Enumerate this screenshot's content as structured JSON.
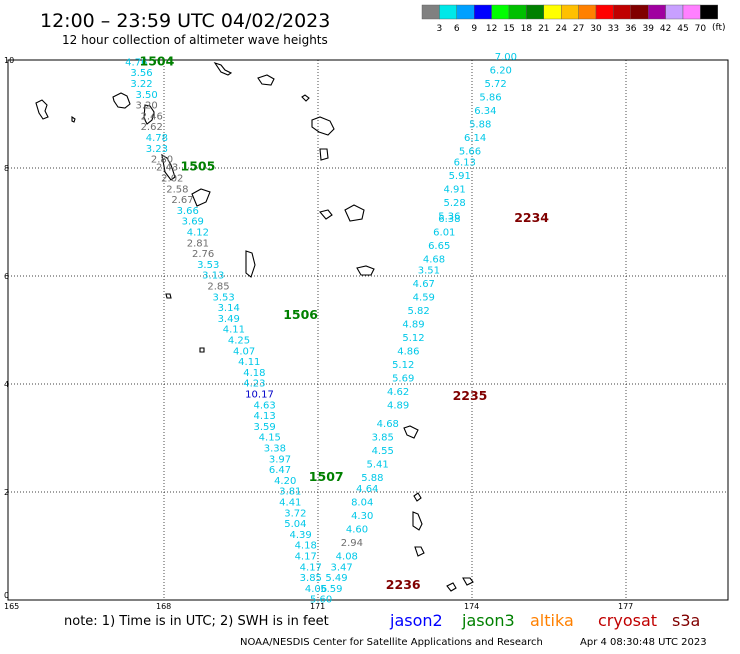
{
  "header": {
    "title": "12:00 – 23:59 UTC 04/02/2023",
    "subtitle": "12 hour collection of altimeter wave heights"
  },
  "legend": {
    "unit": "(ft)",
    "colors": [
      "#808080",
      "#00e8e8",
      "#00a0ff",
      "#0000ff",
      "#00ff00",
      "#00c000",
      "#008000",
      "#ffff00",
      "#ffc000",
      "#ff8000",
      "#ff0000",
      "#c00000",
      "#800000",
      "#a000a0",
      "#c8a0ff",
      "#ff80ff",
      "#000000"
    ],
    "labels": [
      "3",
      "6",
      "9",
      "12",
      "15",
      "18",
      "21",
      "24",
      "27",
      "30",
      "33",
      "36",
      "39",
      "42",
      "45",
      "70"
    ]
  },
  "axes": {
    "x_ticks": [
      "165",
      "168",
      "171",
      "174",
      "177"
    ],
    "y_ticks": [
      "0",
      "2",
      "4",
      "6",
      "8",
      "10"
    ]
  },
  "colors": {
    "teal": "#00c8e8",
    "gray": "#6e6e6e",
    "blue": "#0000c8",
    "green": "#008000",
    "darkred": "#800000"
  },
  "map": {
    "time_labels": [
      {
        "text": "1504",
        "lon": 167.9,
        "lat": 9.9,
        "color": "green"
      },
      {
        "text": "1505",
        "lon": 168.7,
        "lat": 7.95,
        "color": "green"
      },
      {
        "text": "1506",
        "lon": 170.7,
        "lat": 5.2,
        "color": "green"
      },
      {
        "text": "1507",
        "lon": 171.2,
        "lat": 2.2,
        "color": "green"
      },
      {
        "text": "2234",
        "lon": 175.2,
        "lat": 7.0,
        "color": "darkred"
      },
      {
        "text": "2235",
        "lon": 174.0,
        "lat": 3.7,
        "color": "darkred"
      },
      {
        "text": "2236",
        "lon": 172.7,
        "lat": 0.2,
        "color": "darkred"
      }
    ],
    "swh": [
      {
        "v": "4.76",
        "lon": 167.5,
        "lat": 9.9,
        "c": "teal"
      },
      {
        "v": "3.56",
        "lon": 167.6,
        "lat": 9.7,
        "c": "teal"
      },
      {
        "v": "3.22",
        "lon": 167.6,
        "lat": 9.5,
        "c": "teal"
      },
      {
        "v": "3.50",
        "lon": 167.7,
        "lat": 9.3,
        "c": "teal"
      },
      {
        "v": "3.20",
        "lon": 167.7,
        "lat": 9.1,
        "c": "gray"
      },
      {
        "v": "2.46",
        "lon": 167.8,
        "lat": 8.9,
        "c": "gray"
      },
      {
        "v": "2.62",
        "lon": 167.8,
        "lat": 8.7,
        "c": "gray"
      },
      {
        "v": "4.78",
        "lon": 167.9,
        "lat": 8.5,
        "c": "teal"
      },
      {
        "v": "3.23",
        "lon": 167.9,
        "lat": 8.3,
        "c": "teal"
      },
      {
        "v": "2.80",
        "lon": 168.0,
        "lat": 8.1,
        "c": "gray"
      },
      {
        "v": "2.43",
        "lon": 168.1,
        "lat": 7.95,
        "c": "gray"
      },
      {
        "v": "2.02",
        "lon": 168.2,
        "lat": 7.75,
        "c": "gray"
      },
      {
        "v": "2.58",
        "lon": 168.3,
        "lat": 7.55,
        "c": "gray"
      },
      {
        "v": "2.67",
        "lon": 168.4,
        "lat": 7.35,
        "c": "gray"
      },
      {
        "v": "3.66",
        "lon": 168.5,
        "lat": 7.15,
        "c": "teal"
      },
      {
        "v": "3.69",
        "lon": 168.6,
        "lat": 6.95,
        "c": "teal"
      },
      {
        "v": "4.12",
        "lon": 168.7,
        "lat": 6.75,
        "c": "teal"
      },
      {
        "v": "2.81",
        "lon": 168.7,
        "lat": 6.55,
        "c": "gray"
      },
      {
        "v": "2.76",
        "lon": 168.8,
        "lat": 6.35,
        "c": "gray"
      },
      {
        "v": "3.53",
        "lon": 168.9,
        "lat": 6.15,
        "c": "teal"
      },
      {
        "v": "3.13",
        "lon": 169.0,
        "lat": 5.95,
        "c": "teal"
      },
      {
        "v": "2.85",
        "lon": 169.1,
        "lat": 5.75,
        "c": "gray"
      },
      {
        "v": "3.53",
        "lon": 169.2,
        "lat": 5.55,
        "c": "teal"
      },
      {
        "v": "3.14",
        "lon": 169.3,
        "lat": 5.35,
        "c": "teal"
      },
      {
        "v": "3.49",
        "lon": 169.3,
        "lat": 5.15,
        "c": "teal"
      },
      {
        "v": "4.11",
        "lon": 169.4,
        "lat": 4.95,
        "c": "teal"
      },
      {
        "v": "4.25",
        "lon": 169.5,
        "lat": 4.75,
        "c": "teal"
      },
      {
        "v": "4.07",
        "lon": 169.6,
        "lat": 4.55,
        "c": "teal"
      },
      {
        "v": "4.11",
        "lon": 169.7,
        "lat": 4.35,
        "c": "teal"
      },
      {
        "v": "4.18",
        "lon": 169.8,
        "lat": 4.15,
        "c": "teal"
      },
      {
        "v": "4.23",
        "lon": 169.8,
        "lat": 3.95,
        "c": "teal"
      },
      {
        "v": "10.17",
        "lon": 169.9,
        "lat": 3.75,
        "c": "blue"
      },
      {
        "v": "4.63",
        "lon": 170.0,
        "lat": 3.55,
        "c": "teal"
      },
      {
        "v": "4.13",
        "lon": 170.0,
        "lat": 3.35,
        "c": "teal"
      },
      {
        "v": "3.59",
        "lon": 170.0,
        "lat": 3.15,
        "c": "teal"
      },
      {
        "v": "4.15",
        "lon": 170.1,
        "lat": 2.95,
        "c": "teal"
      },
      {
        "v": "3.38",
        "lon": 170.2,
        "lat": 2.75,
        "c": "teal"
      },
      {
        "v": "3.97",
        "lon": 170.3,
        "lat": 2.55,
        "c": "teal"
      },
      {
        "v": "6.47",
        "lon": 170.3,
        "lat": 2.35,
        "c": "teal"
      },
      {
        "v": "4.20",
        "lon": 170.4,
        "lat": 2.15,
        "c": "teal"
      },
      {
        "v": "3.81",
        "lon": 170.5,
        "lat": 1.95,
        "c": "teal"
      },
      {
        "v": "4.41",
        "lon": 170.5,
        "lat": 1.75,
        "c": "teal"
      },
      {
        "v": "3.72",
        "lon": 170.6,
        "lat": 1.55,
        "c": "teal"
      },
      {
        "v": "5.04",
        "lon": 170.6,
        "lat": 1.35,
        "c": "teal"
      },
      {
        "v": "4.39",
        "lon": 170.7,
        "lat": 1.15,
        "c": "teal"
      },
      {
        "v": "4.18",
        "lon": 170.8,
        "lat": 0.95,
        "c": "teal"
      },
      {
        "v": "4.17",
        "lon": 170.8,
        "lat": 0.75,
        "c": "teal"
      },
      {
        "v": "4.17",
        "lon": 170.9,
        "lat": 0.55,
        "c": "teal"
      },
      {
        "v": "3.85",
        "lon": 170.9,
        "lat": 0.35,
        "c": "teal"
      },
      {
        "v": "4.06",
        "lon": 171.0,
        "lat": 0.15,
        "c": "teal"
      },
      {
        "v": "5.60",
        "lon": 171.1,
        "lat": -0.05,
        "c": "teal"
      },
      {
        "v": "7.00",
        "lon": 174.7,
        "lat": 10.0,
        "c": "teal"
      },
      {
        "v": "6.20",
        "lon": 174.6,
        "lat": 9.75,
        "c": "teal"
      },
      {
        "v": "5.72",
        "lon": 174.5,
        "lat": 9.5,
        "c": "teal"
      },
      {
        "v": "5.86",
        "lon": 174.4,
        "lat": 9.25,
        "c": "teal"
      },
      {
        "v": "6.34",
        "lon": 174.3,
        "lat": 9.0,
        "c": "teal"
      },
      {
        "v": "5.88",
        "lon": 174.2,
        "lat": 8.75,
        "c": "teal"
      },
      {
        "v": "6.14",
        "lon": 174.1,
        "lat": 8.5,
        "c": "teal"
      },
      {
        "v": "5.66",
        "lon": 174.0,
        "lat": 8.25,
        "c": "teal"
      },
      {
        "v": "6.13",
        "lon": 173.9,
        "lat": 8.05,
        "c": "teal"
      },
      {
        "v": "5.91",
        "lon": 173.8,
        "lat": 7.8,
        "c": "teal"
      },
      {
        "v": "4.91",
        "lon": 173.7,
        "lat": 7.55,
        "c": "teal"
      },
      {
        "v": "5.28",
        "lon": 173.7,
        "lat": 7.3,
        "c": "teal"
      },
      {
        "v": "5.36",
        "lon": 173.6,
        "lat": 7.05,
        "c": "teal"
      },
      {
        "v": "6.38",
        "lon": 173.6,
        "lat": 7.0,
        "c": "teal"
      },
      {
        "v": "6.01",
        "lon": 173.5,
        "lat": 6.75,
        "c": "teal"
      },
      {
        "v": "6.65",
        "lon": 173.4,
        "lat": 6.5,
        "c": "teal"
      },
      {
        "v": "4.68",
        "lon": 173.3,
        "lat": 6.25,
        "c": "teal"
      },
      {
        "v": "3.51",
        "lon": 173.2,
        "lat": 6.05,
        "c": "teal"
      },
      {
        "v": "4.67",
        "lon": 173.1,
        "lat": 5.8,
        "c": "teal"
      },
      {
        "v": "4.59",
        "lon": 173.1,
        "lat": 5.55,
        "c": "teal"
      },
      {
        "v": "5.82",
        "lon": 173.0,
        "lat": 5.3,
        "c": "teal"
      },
      {
        "v": "4.89",
        "lon": 172.9,
        "lat": 5.05,
        "c": "teal"
      },
      {
        "v": "5.12",
        "lon": 172.9,
        "lat": 4.8,
        "c": "teal"
      },
      {
        "v": "4.86",
        "lon": 172.8,
        "lat": 4.55,
        "c": "teal"
      },
      {
        "v": "5.12",
        "lon": 172.7,
        "lat": 4.3,
        "c": "teal"
      },
      {
        "v": "5.69",
        "lon": 172.7,
        "lat": 4.05,
        "c": "teal"
      },
      {
        "v": "4.62",
        "lon": 172.6,
        "lat": 3.8,
        "c": "teal"
      },
      {
        "v": "4.89",
        "lon": 172.6,
        "lat": 3.55,
        "c": "teal"
      },
      {
        "v": "4.68",
        "lon": 172.4,
        "lat": 3.2,
        "c": "teal"
      },
      {
        "v": "3.85",
        "lon": 172.3,
        "lat": 2.95,
        "c": "teal"
      },
      {
        "v": "4.55",
        "lon": 172.3,
        "lat": 2.7,
        "c": "teal"
      },
      {
        "v": "5.41",
        "lon": 172.2,
        "lat": 2.45,
        "c": "teal"
      },
      {
        "v": "5.88",
        "lon": 172.1,
        "lat": 2.2,
        "c": "teal"
      },
      {
        "v": "4.64",
        "lon": 172.0,
        "lat": 2.0,
        "c": "teal"
      },
      {
        "v": "8.04",
        "lon": 171.9,
        "lat": 1.75,
        "c": "teal"
      },
      {
        "v": "4.30",
        "lon": 171.9,
        "lat": 1.5,
        "c": "teal"
      },
      {
        "v": "4.60",
        "lon": 171.8,
        "lat": 1.25,
        "c": "teal"
      },
      {
        "v": "2.94",
        "lon": 171.7,
        "lat": 1.0,
        "c": "gray"
      },
      {
        "v": "4.08",
        "lon": 171.6,
        "lat": 0.75,
        "c": "teal"
      },
      {
        "v": "3.47",
        "lon": 171.5,
        "lat": 0.55,
        "c": "teal"
      },
      {
        "v": "5.49",
        "lon": 171.4,
        "lat": 0.35,
        "c": "teal"
      },
      {
        "v": "5.59",
        "lon": 171.3,
        "lat": 0.15,
        "c": "teal"
      }
    ]
  },
  "footer": {
    "note": "note: 1) Time is in UTC; 2) SWH is in feet",
    "satellites": [
      {
        "name": "jason2",
        "color": "#0000ff"
      },
      {
        "name": "jason3",
        "color": "#008000"
      },
      {
        "name": "altika",
        "color": "#ff8000"
      },
      {
        "name": "cryosat",
        "color": "#c00000"
      },
      {
        "name": "s3a",
        "color": "#800000"
      }
    ],
    "credit": "NOAA/NESDIS Center for Satellite Applications and Research",
    "timestamp": "Apr  4 08:30:48 UTC 2023"
  }
}
